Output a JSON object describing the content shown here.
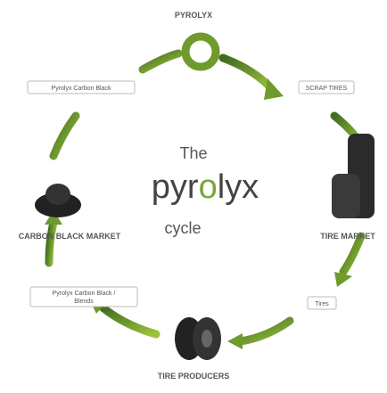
{
  "header": {
    "title": "PYROLYX"
  },
  "center": {
    "line1": "The",
    "word_parts": [
      "pyr",
      "o",
      "lyx"
    ],
    "line3": "cycle"
  },
  "nodes": [
    {
      "label": "Pyrolyx Carbon Black"
    },
    {
      "label": "SCRAP TIRES"
    },
    {
      "label": "CARBON BLACK MARKET"
    },
    {
      "label": "TIRE MARKET"
    },
    {
      "label": "Pyrolyx Carbon Black /",
      "label2": "Blends"
    },
    {
      "label": "Tires"
    },
    {
      "label": "TIRE PRODUCERS"
    }
  ]
}
